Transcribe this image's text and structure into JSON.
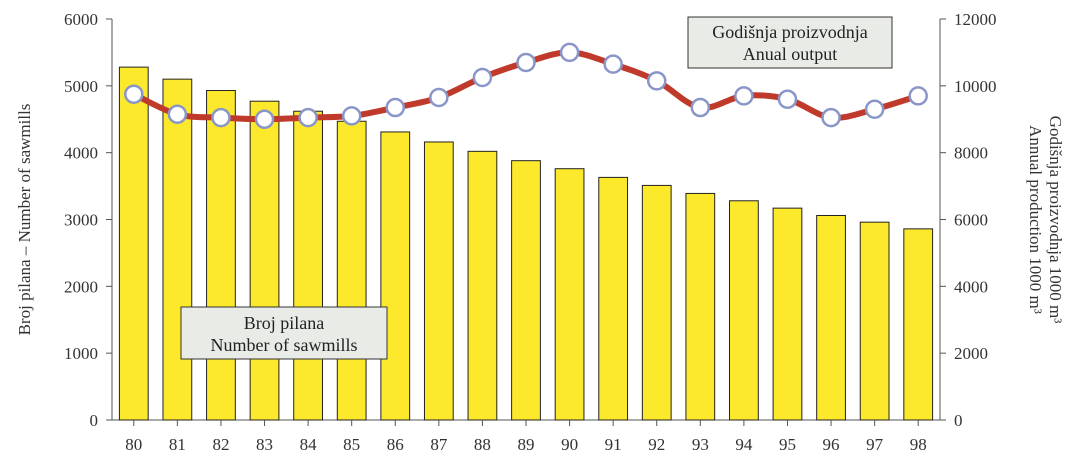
{
  "chart_data": {
    "type": "bar+line",
    "categories": [
      "80",
      "81",
      "82",
      "83",
      "84",
      "85",
      "86",
      "87",
      "88",
      "89",
      "90",
      "91",
      "92",
      "93",
      "94",
      "95",
      "96",
      "97",
      "98"
    ],
    "series": [
      {
        "name": "Broj pilana / Number of sawmills",
        "type": "bar",
        "axis": "left",
        "values": [
          5280,
          5100,
          4930,
          4770,
          4620,
          4470,
          4310,
          4160,
          4020,
          3880,
          3760,
          3630,
          3510,
          3390,
          3280,
          3170,
          3060,
          2960,
          2860
        ]
      },
      {
        "name": "Godišnja proizvodnja / Anual output",
        "type": "line",
        "axis": "right",
        "values": [
          9750,
          9150,
          9050,
          9000,
          9050,
          9100,
          9350,
          9650,
          10250,
          10700,
          11000,
          10650,
          10150,
          9350,
          9700,
          9600,
          9050,
          9300,
          9700
        ]
      }
    ],
    "y_left": {
      "label": "Broj pilana – Number of sawmills",
      "range": [
        0,
        6000
      ],
      "ticks": [
        0,
        1000,
        2000,
        3000,
        4000,
        5000,
        6000
      ]
    },
    "y_right": {
      "label_line1": "Godišnja proizvodnja 1000 m³",
      "label_line2": "Annual production 1000 m³",
      "range": [
        0,
        12000
      ],
      "ticks": [
        0,
        2000,
        4000,
        6000,
        8000,
        10000,
        12000
      ]
    },
    "annotations": {
      "bars_line1": "Broj pilana",
      "bars_line2": "Number of sawmills",
      "line_line1": "Godišnja proizvodnja",
      "line_line2": "Anual output"
    },
    "colors": {
      "bar_fill": "#fce92c",
      "line": "#c03a2b",
      "marker_stroke": "#8a96c8"
    }
  }
}
